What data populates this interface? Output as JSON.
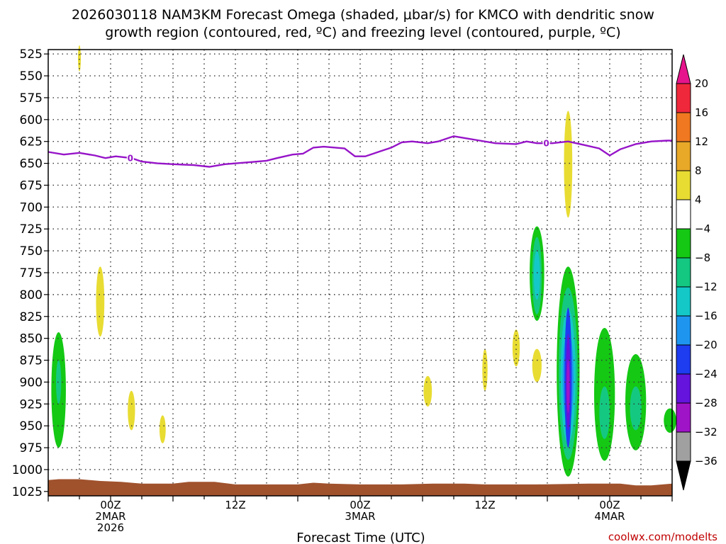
{
  "chart_data": {
    "type": "heatmap",
    "title_line1": "2026030118 NAM3KM Forecast Omega (shaded, μbar/s) for KMCO with dendritic snow",
    "title_line2": "growth region (contoured, red, ºC) and freezing level (contoured, purple, ºC)",
    "xlabel": "Forecast Time (UTC)",
    "credit": "coolwx.com/modelts",
    "y_axis": {
      "unit": "hPa",
      "ticks": [
        525,
        550,
        575,
        600,
        625,
        650,
        675,
        700,
        725,
        750,
        775,
        800,
        825,
        850,
        875,
        900,
        925,
        950,
        975,
        1000,
        1025
      ],
      "range": [
        520,
        1030
      ]
    },
    "x_axis": {
      "range_hours": [
        0,
        60
      ],
      "ticks": [
        {
          "hour": 6,
          "label1": "00Z",
          "label2": "2MAR",
          "label3": "2026"
        },
        {
          "hour": 18,
          "label1": "12Z",
          "label2": "",
          "label3": ""
        },
        {
          "hour": 30,
          "label1": "00Z",
          "label2": "3MAR",
          "label3": ""
        },
        {
          "hour": 42,
          "label1": "12Z",
          "label2": "",
          "label3": ""
        },
        {
          "hour": 54,
          "label1": "00Z",
          "label2": "4MAR",
          "label3": ""
        }
      ]
    },
    "grid": true,
    "colorbar": {
      "labels": [
        "20",
        "16",
        "12",
        "8",
        "4",
        "−4",
        "−8",
        "−12",
        "−16",
        "−20",
        "−24",
        "−28",
        "−32",
        "−36"
      ],
      "bands": [
        {
          "label": "16 to 20",
          "color": "#f0283c"
        },
        {
          "label": "12 to 16",
          "color": "#f07820"
        },
        {
          "label": "8 to 12",
          "color": "#e8a828"
        },
        {
          "label": "4 to 8",
          "color": "#e8dc32"
        },
        {
          "label": "-4 to 4",
          "color": "#ffffff"
        },
        {
          "label": "-8 to -4",
          "color": "#14c814"
        },
        {
          "label": "-12 to -8",
          "color": "#14c882"
        },
        {
          "label": "-16 to -12",
          "color": "#14c8c8"
        },
        {
          "label": "-20 to -16",
          "color": "#1e96f0"
        },
        {
          "label": "-24 to -20",
          "color": "#1e3cf0"
        },
        {
          "label": "-28 to -24",
          "color": "#6414dc"
        },
        {
          "label": "-32 to -28",
          "color": "#a014c8"
        },
        {
          "label": "-36 to -32",
          "color": "#a0a0a0"
        }
      ],
      "top_arrow_color": "#e6148c",
      "bottom_arrow_color": "#000000"
    },
    "freezing_level": {
      "label": "0",
      "color": "#9614c8",
      "label_hours": [
        7.9,
        47.9
      ],
      "points": [
        [
          0,
          637
        ],
        [
          1.5,
          640
        ],
        [
          3,
          638
        ],
        [
          4.5,
          641
        ],
        [
          5.5,
          644
        ],
        [
          6.5,
          642
        ],
        [
          8,
          644
        ],
        [
          9,
          648
        ],
        [
          10.5,
          650
        ],
        [
          12,
          651
        ],
        [
          14,
          652
        ],
        [
          15.5,
          654
        ],
        [
          17,
          651
        ],
        [
          19,
          649
        ],
        [
          21,
          647
        ],
        [
          22,
          644
        ],
        [
          23.5,
          640
        ],
        [
          24.5,
          639
        ],
        [
          25.5,
          632
        ],
        [
          26.5,
          631
        ],
        [
          28.5,
          633
        ],
        [
          29.5,
          642
        ],
        [
          30.5,
          642
        ],
        [
          32,
          636
        ],
        [
          33,
          632
        ],
        [
          34,
          626
        ],
        [
          35,
          625
        ],
        [
          36.5,
          627
        ],
        [
          37.5,
          625
        ],
        [
          39,
          619
        ],
        [
          40,
          621
        ],
        [
          41.5,
          624
        ],
        [
          43,
          627
        ],
        [
          45,
          628
        ],
        [
          46,
          625
        ],
        [
          47,
          627
        ],
        [
          48.5,
          627
        ],
        [
          50,
          625
        ],
        [
          51.5,
          629
        ],
        [
          53,
          633
        ],
        [
          54,
          641
        ],
        [
          55,
          634
        ],
        [
          56.5,
          628
        ],
        [
          58,
          625
        ],
        [
          59.5,
          624
        ],
        [
          60,
          624
        ]
      ]
    },
    "omega_features": [
      {
        "hour": 1.0,
        "p_top": 843,
        "p_bot": 975,
        "half_width_h": 0.7,
        "layers": [
          "#14c814"
        ],
        "cores": [
          {
            "p": 900,
            "hw": 0.25,
            "ph": 25,
            "color": "#14c882"
          }
        ]
      },
      {
        "hour": 3.0,
        "p_top": 515,
        "p_bot": 545,
        "half_width_h": 0.12,
        "layers": [
          "#e8dc32"
        ]
      },
      {
        "hour": 5.0,
        "p_top": 768,
        "p_bot": 848,
        "half_width_h": 0.4,
        "layers": [
          "#e8dc32"
        ]
      },
      {
        "hour": 8.0,
        "p_top": 910,
        "p_bot": 955,
        "half_width_h": 0.35,
        "layers": [
          "#e8dc32"
        ]
      },
      {
        "hour": 11.0,
        "p_top": 938,
        "p_bot": 970,
        "half_width_h": 0.3,
        "layers": [
          "#e8dc32"
        ]
      },
      {
        "hour": 36.5,
        "p_top": 893,
        "p_bot": 928,
        "half_width_h": 0.4,
        "layers": [
          "#e8dc32"
        ]
      },
      {
        "hour": 42.0,
        "p_top": 862,
        "p_bot": 910,
        "half_width_h": 0.25,
        "layers": [
          "#e8dc32"
        ]
      },
      {
        "hour": 45.0,
        "p_top": 840,
        "p_bot": 882,
        "half_width_h": 0.35,
        "layers": [
          "#e8dc32"
        ]
      },
      {
        "hour": 47.0,
        "p_top": 862,
        "p_bot": 900,
        "half_width_h": 0.45,
        "layers": [
          "#e8dc32"
        ]
      },
      {
        "hour": 47.0,
        "p_top": 722,
        "p_bot": 830,
        "half_width_h": 0.7,
        "layers": [
          "#14c814",
          "#14c882"
        ],
        "cores": [
          {
            "p": 778,
            "hw": 0.3,
            "ph": 28,
            "color": "#14c8c8"
          }
        ]
      },
      {
        "hour": 50.0,
        "p_top": 590,
        "p_bot": 712,
        "half_width_h": 0.4,
        "layers": [
          "#e8dc32"
        ]
      },
      {
        "hour": 50.0,
        "p_top": 768,
        "p_bot": 1008,
        "half_width_h": 1.1,
        "layers": [
          "#14c814",
          "#14c882",
          "#14c8c8",
          "#1e96f0"
        ],
        "cores": [
          {
            "p": 895,
            "hw": 0.35,
            "ph": 80,
            "color": "#1e3cf0"
          },
          {
            "p": 900,
            "hw": 0.22,
            "ph": 55,
            "color": "#6414dc"
          },
          {
            "p": 905,
            "hw": 0.12,
            "ph": 30,
            "color": "#a014c8"
          }
        ]
      },
      {
        "hour": 53.5,
        "p_top": 838,
        "p_bot": 990,
        "half_width_h": 1.0,
        "layers": [
          "#14c814"
        ],
        "cores": [
          {
            "p": 935,
            "hw": 0.5,
            "ph": 30,
            "color": "#14c882"
          }
        ]
      },
      {
        "hour": 56.5,
        "p_top": 868,
        "p_bot": 978,
        "half_width_h": 1.0,
        "layers": [
          "#14c814"
        ],
        "cores": [
          {
            "p": 930,
            "hw": 0.55,
            "ph": 25,
            "color": "#14c882"
          }
        ]
      },
      {
        "hour": 59.8,
        "p_top": 930,
        "p_bot": 958,
        "half_width_h": 0.6,
        "layers": [
          "#14c814"
        ]
      }
    ],
    "terrain": {
      "color": "#a0522d",
      "top_points": [
        [
          0,
          1012
        ],
        [
          1,
          1011
        ],
        [
          3,
          1011
        ],
        [
          5,
          1013
        ],
        [
          7,
          1014
        ],
        [
          9,
          1016
        ],
        [
          12,
          1016
        ],
        [
          13.5,
          1014
        ],
        [
          16,
          1014
        ],
        [
          18,
          1017
        ],
        [
          24,
          1017
        ],
        [
          25.5,
          1015
        ],
        [
          27,
          1016
        ],
        [
          30,
          1017
        ],
        [
          34,
          1017
        ],
        [
          37,
          1016
        ],
        [
          40,
          1016
        ],
        [
          42,
          1017
        ],
        [
          47,
          1017
        ],
        [
          52,
          1016
        ],
        [
          55,
          1016
        ],
        [
          56.5,
          1018
        ],
        [
          58,
          1018
        ],
        [
          60,
          1016
        ]
      ]
    }
  }
}
